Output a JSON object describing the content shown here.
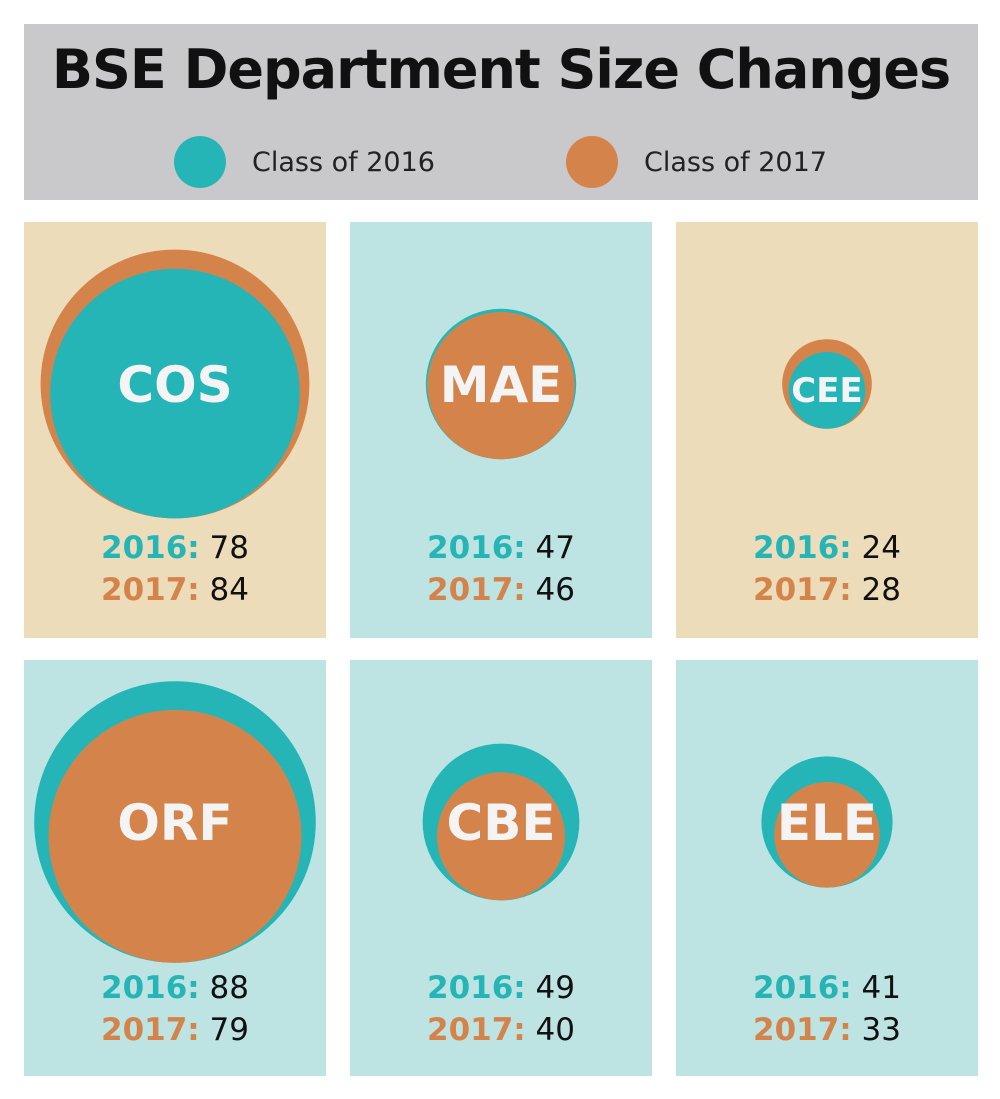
{
  "title": "BSE Department Size Changes",
  "legend": [
    {
      "label": "Class of 2016",
      "color": "#26b5b7"
    },
    {
      "label": "Class of 2017",
      "color": "#d4844b"
    }
  ],
  "chart_data": {
    "type": "bubble",
    "title": "BSE Department Size Changes",
    "series": [
      {
        "name": "Class of 2016",
        "color": "#26b5b7"
      },
      {
        "name": "Class of 2017",
        "color": "#d4844b"
      }
    ],
    "departments": [
      {
        "name": "COS",
        "y2016": 78,
        "y2017": 84,
        "label2016": "2016:",
        "label2017": "2017:",
        "bg": "#ecdcba"
      },
      {
        "name": "MAE",
        "y2016": 47,
        "y2017": 46,
        "label2016": "2016:",
        "label2017": "2017:",
        "bg": "#bde4e3"
      },
      {
        "name": "CEE",
        "y2016": 24,
        "y2017": 28,
        "label2016": "2016:",
        "label2017": "2017:",
        "bg": "#ecdcba"
      },
      {
        "name": "ORF",
        "y2016": 88,
        "y2017": 79,
        "label2016": "2016:",
        "label2017": "2017:",
        "bg": "#bde4e3"
      },
      {
        "name": "CBE",
        "y2016": 49,
        "y2017": 40,
        "label2016": "2016:",
        "label2017": "2017:",
        "bg": "#bde4e3"
      },
      {
        "name": "ELE",
        "y2016": 41,
        "y2017": 33,
        "label2016": "2016:",
        "label2017": "2017:",
        "bg": "#bde4e3"
      }
    ]
  }
}
